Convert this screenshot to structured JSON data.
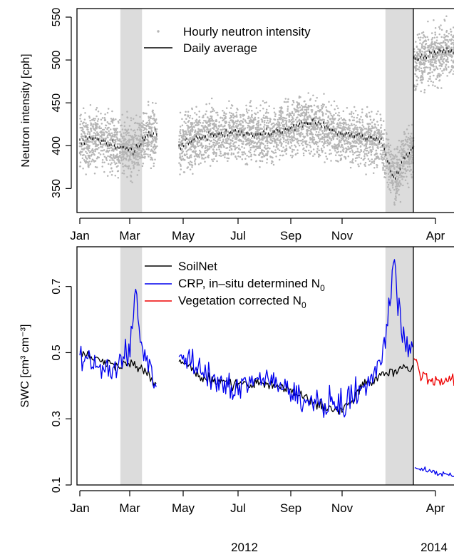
{
  "chart_data": [
    {
      "type": "scatter",
      "ylabel": "Neutron intensity [cph]",
      "ylim": [
        322,
        560
      ],
      "yticks": [
        350,
        400,
        450,
        500,
        550
      ],
      "xticks": [
        "Jan",
        "Mar",
        "May",
        "Jul",
        "Sep",
        "Nov",
        "Apr"
      ],
      "shaded_periods": [
        [
          "2012-02-15",
          "2012-03-10"
        ],
        [
          "2012-12-05",
          "2013-01-05"
        ]
      ],
      "legend_position": "top-left",
      "series": [
        {
          "name": "Hourly neutron intensity",
          "style": "points",
          "color": "#b5b5b5",
          "spread": 28,
          "segments": [
            {
              "x": [
                "2012-01-01",
                "2012-01-15",
                "2012-02-01",
                "2012-02-15",
                "2012-03-01",
                "2012-03-15",
                "2012-03-27"
              ],
              "y": [
                405,
                408,
                403,
                400,
                395,
                410,
                415
              ]
            },
            {
              "x": [
                "2012-04-20",
                "2012-05-15",
                "2012-06-15",
                "2012-07-15",
                "2012-08-15",
                "2012-09-15",
                "2012-10-15",
                "2012-11-15",
                "2012-12-01",
                "2012-12-15",
                "2012-12-25",
                "2013-01-05"
              ],
              "y": [
                400,
                410,
                415,
                412,
                418,
                425,
                412,
                408,
                405,
                360,
                385,
                400
              ]
            },
            {
              "x": [
                "2013-01-06",
                "2013-01-31",
                "2013-02-25",
                "2013-03-15"
              ],
              "y": [
                495,
                505,
                510,
                512
              ]
            }
          ]
        },
        {
          "name": "Daily average",
          "style": "dashes",
          "color": "#000000",
          "segments": [
            {
              "x": [
                "2012-01-01",
                "2012-01-15",
                "2012-02-01",
                "2012-02-15",
                "2012-03-01",
                "2012-03-15",
                "2012-03-27"
              ],
              "y": [
                402,
                410,
                403,
                398,
                392,
                412,
                418
              ]
            },
            {
              "x": [
                "2012-04-20",
                "2012-05-15",
                "2012-06-15",
                "2012-07-15",
                "2012-08-15",
                "2012-09-15",
                "2012-10-15",
                "2012-11-15",
                "2012-12-01",
                "2012-12-15",
                "2012-12-25",
                "2013-01-05"
              ],
              "y": [
                400,
                411,
                415,
                412,
                418,
                428,
                415,
                410,
                405,
                358,
                384,
                398
              ]
            },
            {
              "x": [
                "2013-01-06",
                "2013-01-31",
                "2013-02-25",
                "2013-03-15"
              ],
              "y": [
                500,
                507,
                510,
                513
              ]
            }
          ]
        }
      ]
    },
    {
      "type": "line",
      "ylabel": "SWC [cm³ cm⁻³]",
      "ylim": [
        0.1,
        0.82
      ],
      "yticks": [
        0.1,
        0.3,
        0.5,
        0.7
      ],
      "xticks": [
        "Jan",
        "Mar",
        "May",
        "Jul",
        "Sep",
        "Nov",
        "Apr"
      ],
      "shaded_periods": [
        [
          "2012-02-15",
          "2012-03-10"
        ],
        [
          "2012-12-05",
          "2013-01-05"
        ]
      ],
      "legend_position": "top-left",
      "series": [
        {
          "name": "SoilNet",
          "color": "#000000",
          "segments": [
            {
              "x": [
                "2012-01-01",
                "2012-01-20",
                "2012-02-10",
                "2012-03-01",
                "2012-03-15",
                "2012-03-27"
              ],
              "y": [
                0.5,
                0.48,
                0.46,
                0.47,
                0.44,
                0.4
              ]
            },
            {
              "x": [
                "2012-04-20",
                "2012-05-20",
                "2012-06-20",
                "2012-07-20",
                "2012-08-20",
                "2012-09-10",
                "2012-09-30",
                "2012-10-20",
                "2012-11-10",
                "2012-12-01",
                "2012-12-20",
                "2013-01-05"
              ],
              "y": [
                0.48,
                0.42,
                0.4,
                0.41,
                0.39,
                0.36,
                0.33,
                0.33,
                0.4,
                0.43,
                0.45,
                0.45
              ]
            }
          ]
        },
        {
          "name": "CRP, in–situ determined N",
          "name_sub": "0",
          "color": "#0000ee",
          "segments": [
            {
              "x": [
                "2012-01-01",
                "2012-01-20",
                "2012-02-10",
                "2012-02-25",
                "2012-03-03",
                "2012-03-10",
                "2012-03-27"
              ],
              "y": [
                0.5,
                0.46,
                0.45,
                0.5,
                0.7,
                0.5,
                0.4
              ]
            },
            {
              "x": [
                "2012-04-20",
                "2012-05-20",
                "2012-06-20",
                "2012-07-20",
                "2012-08-20",
                "2012-09-10",
                "2012-09-30",
                "2012-10-20",
                "2012-11-10",
                "2012-11-25",
                "2012-12-05",
                "2012-12-15",
                "2012-12-22",
                "2013-01-05"
              ],
              "y": [
                0.5,
                0.42,
                0.4,
                0.43,
                0.39,
                0.36,
                0.34,
                0.35,
                0.4,
                0.45,
                0.55,
                0.8,
                0.55,
                0.52
              ]
            },
            {
              "x": [
                "2013-01-07",
                "2013-02-01",
                "2013-03-01",
                "2013-03-15"
              ],
              "y": [
                0.15,
                0.14,
                0.13,
                0.125
              ]
            }
          ]
        },
        {
          "name": "Vegetation corrected N",
          "name_sub": "0",
          "color": "#ee0000",
          "segments": [
            {
              "x": [
                "2013-01-06",
                "2013-01-20",
                "2013-02-05",
                "2013-02-20",
                "2013-03-15"
              ],
              "y": [
                0.5,
                0.43,
                0.41,
                0.42,
                0.4
              ]
            }
          ]
        }
      ]
    }
  ],
  "year_labels": [
    "2012",
    "2014"
  ]
}
